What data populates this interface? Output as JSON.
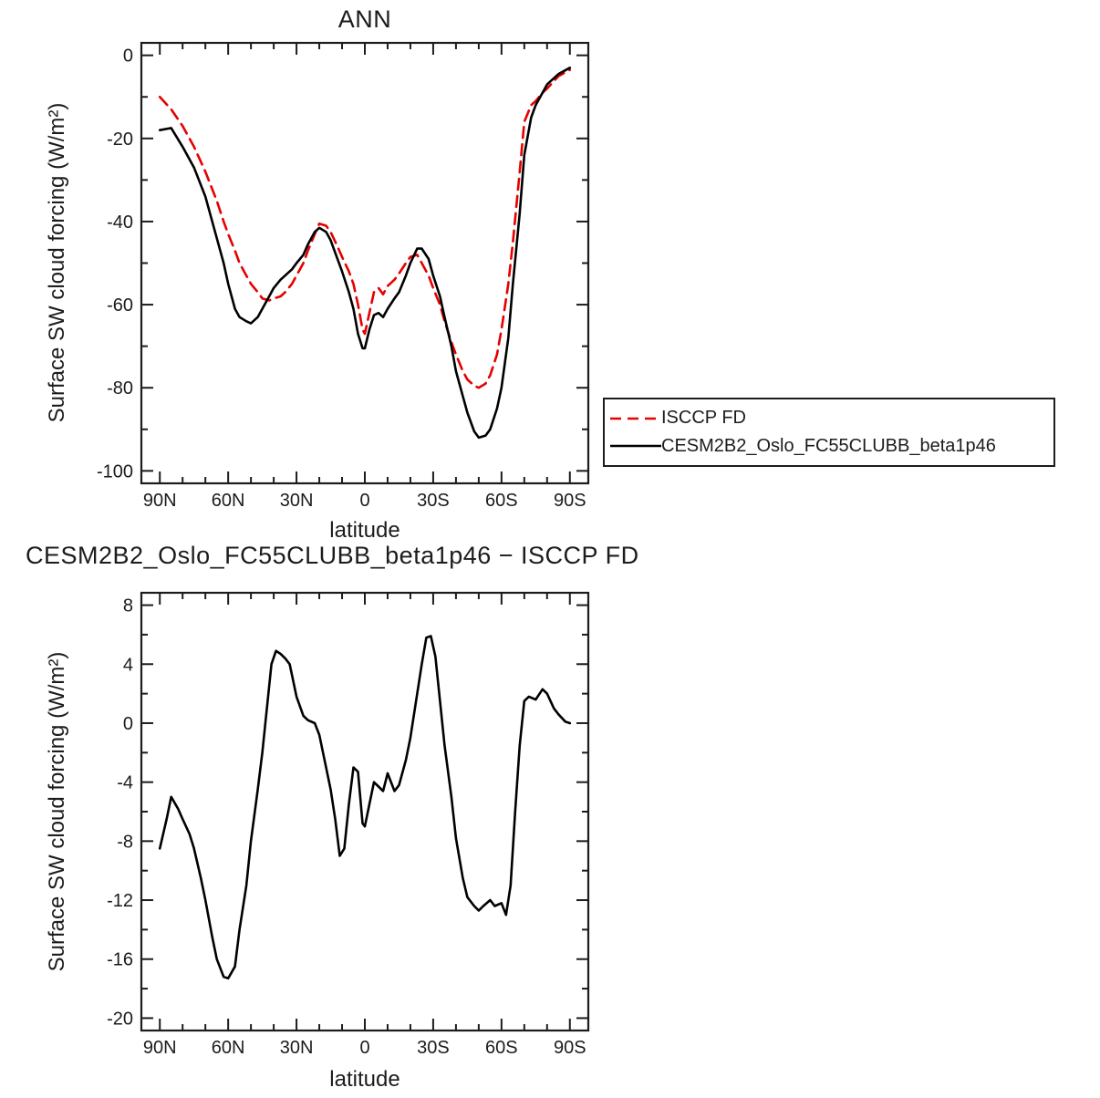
{
  "chart_data": [
    {
      "type": "line",
      "title": "ANN",
      "xlabel": "latitude",
      "ylabel": "Surface SW cloud forcing (W/m²)",
      "xlim": [
        90,
        -90
      ],
      "ylim": [
        0,
        -100
      ],
      "legend_position": "outside-right",
      "xticks": {
        "values": [
          90,
          60,
          30,
          0,
          -30,
          -60,
          -90
        ],
        "labels": [
          "90N",
          "60N",
          "30N",
          "0",
          "30S",
          "60S",
          "90S"
        ],
        "minor": [
          80,
          70,
          50,
          40,
          20,
          10,
          -10,
          -20,
          -40,
          -50,
          -70,
          -80
        ]
      },
      "yticks": {
        "values": [
          0,
          -20,
          -40,
          -60,
          -80,
          -100
        ],
        "labels": [
          "0",
          "-20",
          "-40",
          "-60",
          "-80",
          "-100"
        ],
        "minor": [
          -10,
          -30,
          -50,
          -70,
          -90
        ]
      },
      "series": [
        {
          "name": "ISCCP FD",
          "color": "#e60000",
          "dasharray": "12,7",
          "x": [
            90,
            85,
            80,
            75,
            70,
            65,
            62,
            60,
            57,
            55,
            52,
            50,
            47,
            45,
            42,
            40,
            37,
            35,
            32,
            30,
            27,
            25,
            22,
            20,
            17,
            15,
            12,
            10,
            7,
            5,
            3,
            1,
            0,
            -2,
            -4,
            -6,
            -8,
            -10,
            -13,
            -15,
            -18,
            -20,
            -23,
            -25,
            -28,
            -30,
            -33,
            -35,
            -38,
            -40,
            -43,
            -45,
            -48,
            -50,
            -53,
            -55,
            -58,
            -60,
            -63,
            -65,
            -68,
            -70,
            -73,
            -75,
            -78,
            -80,
            -85,
            -90
          ],
          "y": [
            -10,
            -13,
            -17,
            -22,
            -28,
            -35,
            -40,
            -43,
            -47,
            -50,
            -53,
            -55,
            -57,
            -58.5,
            -59,
            -58.5,
            -58,
            -57,
            -55,
            -53,
            -50,
            -47,
            -43,
            -40.5,
            -41,
            -42.5,
            -46,
            -48.5,
            -52,
            -55,
            -60,
            -66,
            -67,
            -62,
            -57,
            -56,
            -57.5,
            -55.5,
            -54,
            -52.5,
            -50,
            -48.5,
            -48,
            -50,
            -53,
            -56,
            -60,
            -64,
            -69,
            -72,
            -76,
            -78,
            -79.5,
            -80,
            -79,
            -77,
            -72,
            -66,
            -55,
            -45,
            -28,
            -16,
            -12,
            -11,
            -9,
            -8,
            -5,
            -3.5
          ]
        },
        {
          "name": "CESM2B2_Oslo_FC55CLUBB_beta1p46",
          "color": "#000000",
          "dasharray": "none",
          "x": [
            90,
            85,
            80,
            75,
            70,
            65,
            62,
            60,
            57,
            55,
            52,
            50,
            47,
            45,
            42,
            40,
            37,
            35,
            32,
            30,
            27,
            25,
            22,
            20,
            17,
            15,
            12,
            10,
            7,
            5,
            3,
            1,
            0,
            -2,
            -4,
            -6,
            -8,
            -10,
            -13,
            -15,
            -18,
            -20,
            -23,
            -25,
            -28,
            -30,
            -33,
            -35,
            -38,
            -40,
            -43,
            -45,
            -48,
            -50,
            -53,
            -55,
            -58,
            -60,
            -63,
            -65,
            -68,
            -70,
            -73,
            -75,
            -78,
            -80,
            -85,
            -90
          ],
          "y": [
            -18,
            -17.5,
            -22,
            -27,
            -34,
            -44,
            -50,
            -55,
            -61,
            -63,
            -64,
            -64.5,
            -63,
            -61,
            -58,
            -56,
            -54,
            -53,
            -51.5,
            -50,
            -48,
            -45.5,
            -42.5,
            -41.5,
            -42.5,
            -44.5,
            -49,
            -52,
            -57,
            -61,
            -67,
            -70.5,
            -70.5,
            -66,
            -62.5,
            -62,
            -63,
            -61,
            -58.5,
            -57,
            -53,
            -50,
            -46.5,
            -46.5,
            -49,
            -53,
            -58,
            -63,
            -70,
            -76,
            -82,
            -86,
            -90.5,
            -92,
            -91.5,
            -90,
            -85,
            -80,
            -68,
            -55,
            -38,
            -24,
            -15,
            -12,
            -9,
            -7,
            -4.5,
            -3
          ]
        }
      ]
    },
    {
      "type": "line",
      "title": "CESM2B2_Oslo_FC55CLUBB_beta1p46 − ISCCP FD",
      "xlabel": "latitude",
      "ylabel": "Surface SW cloud forcing (W/m²)",
      "xlim": [
        90,
        -90
      ],
      "ylim": [
        8,
        -20
      ],
      "xticks": {
        "values": [
          90,
          60,
          30,
          0,
          -30,
          -60,
          -90
        ],
        "labels": [
          "90N",
          "60N",
          "30N",
          "0",
          "30S",
          "60S",
          "90S"
        ],
        "minor": [
          80,
          70,
          50,
          40,
          20,
          10,
          -10,
          -20,
          -40,
          -50,
          -70,
          -80
        ]
      },
      "yticks": {
        "values": [
          8,
          4,
          0,
          -4,
          -8,
          -12,
          -16,
          -20
        ],
        "labels": [
          "8",
          "4",
          "0",
          "-4",
          "-8",
          "-12",
          "-16",
          "-20"
        ],
        "minor": [
          6,
          2,
          -2,
          -6,
          -10,
          -14,
          -18
        ]
      },
      "series": [
        {
          "name": "CESM2B2_Oslo_FC55CLUBB_beta1p46 minus ISCCP FD",
          "color": "#000000",
          "dasharray": "none",
          "x": [
            90,
            87,
            85,
            82,
            80,
            77,
            75,
            72,
            70,
            67,
            65,
            62,
            60,
            57,
            55,
            52,
            50,
            47,
            45,
            43,
            41,
            39,
            37,
            35,
            33,
            30,
            27,
            25,
            22,
            20,
            17,
            15,
            13,
            11,
            9,
            7,
            5,
            3,
            1,
            0,
            -2,
            -4,
            -6,
            -8,
            -10,
            -13,
            -15,
            -18,
            -20,
            -22,
            -25,
            -27,
            -29,
            -31,
            -33,
            -35,
            -38,
            -40,
            -43,
            -45,
            -48,
            -50,
            -52,
            -55,
            -57,
            -60,
            -62,
            -64,
            -66,
            -68,
            -70,
            -72,
            -75,
            -78,
            -80,
            -83,
            -85,
            -88,
            -90
          ],
          "y": [
            -8.5,
            -6.5,
            -5,
            -5.8,
            -6.5,
            -7.5,
            -8.5,
            -10.5,
            -12,
            -14.5,
            -16,
            -17.2,
            -17.3,
            -16.5,
            -14,
            -11,
            -8,
            -4.5,
            -2,
            1,
            4,
            4.9,
            4.7,
            4.4,
            4,
            1.8,
            0.5,
            0.2,
            0,
            -0.8,
            -3,
            -4.5,
            -6.5,
            -9,
            -8.5,
            -5.5,
            -3,
            -3.3,
            -6.8,
            -7,
            -5.5,
            -4,
            -4.3,
            -4.6,
            -3.4,
            -4.6,
            -4.2,
            -2.5,
            -1,
            1,
            4,
            5.8,
            5.9,
            4.5,
            1.5,
            -1.5,
            -5,
            -7.8,
            -10.5,
            -11.8,
            -12.4,
            -12.7,
            -12.4,
            -12,
            -12.4,
            -12.2,
            -13,
            -11,
            -6,
            -1.5,
            1.5,
            1.8,
            1.6,
            2.3,
            2,
            1,
            0.6,
            0.1,
            0
          ]
        }
      ]
    }
  ]
}
